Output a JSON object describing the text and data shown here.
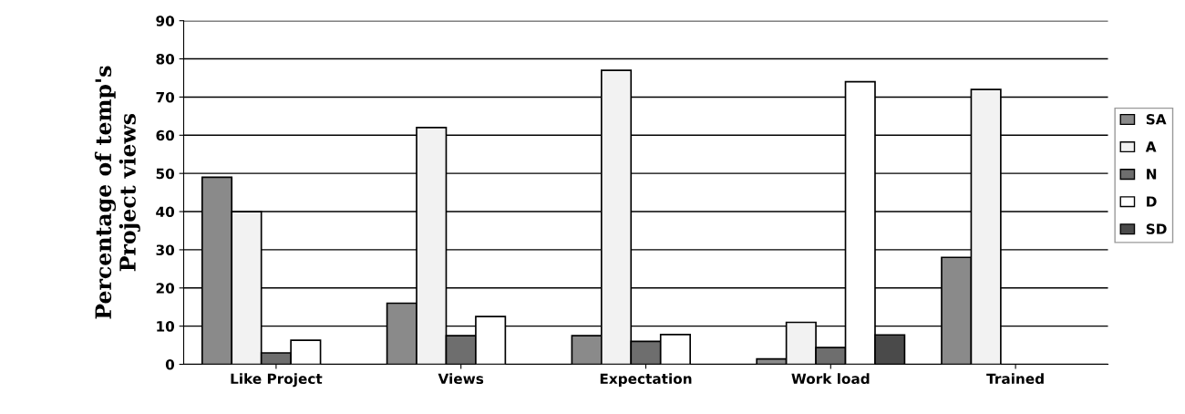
{
  "chart_data": {
    "type": "bar",
    "ylabel": "Percentage of temp's\nProject views",
    "categories": [
      "Like Project",
      "Views",
      "Expectation",
      "Work load",
      "Trained"
    ],
    "series": [
      {
        "name": "SA",
        "color": "#8a8a8a",
        "values": [
          49,
          16,
          7.5,
          1.4,
          28
        ]
      },
      {
        "name": "A",
        "color": "#f2f2f2",
        "values": [
          40,
          62,
          77,
          11,
          72
        ]
      },
      {
        "name": "N",
        "color": "#6e6e6e",
        "values": [
          3,
          7.5,
          6,
          4.4,
          0
        ]
      },
      {
        "name": "D",
        "color": "#ffffff",
        "values": [
          6.3,
          12.5,
          7.8,
          74,
          0
        ]
      },
      {
        "name": "SD",
        "color": "#4a4a4a",
        "values": [
          0,
          0,
          0,
          7.7,
          0
        ]
      }
    ],
    "ylim": [
      0,
      90
    ],
    "yticks": [
      0,
      10,
      20,
      30,
      40,
      50,
      60,
      70,
      80,
      90
    ],
    "grid": "y",
    "legend": "right"
  }
}
